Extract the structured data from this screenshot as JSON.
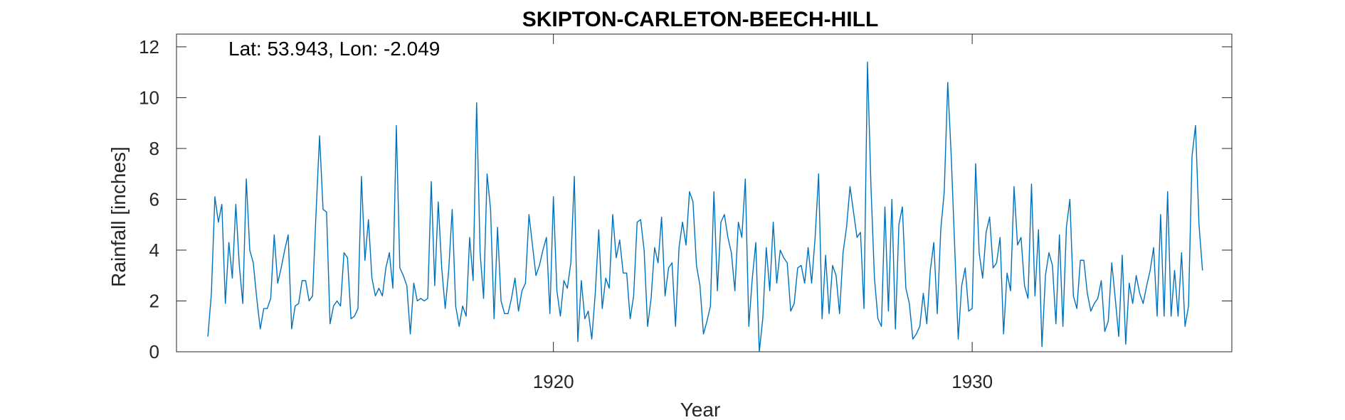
{
  "chart_data": {
    "type": "line",
    "title": "SKIPTON-CARLETON-BEECH-HILL",
    "xlabel": "Year",
    "ylabel": "Rainfall [inches]",
    "annotation": "Lat: 53.943, Lon: -2.049",
    "xlim": [
      1911,
      1936.2
    ],
    "ylim": [
      0,
      12.5
    ],
    "x_ticks": [
      1920,
      1930
    ],
    "x_tick_labels": [
      "1920",
      "1930"
    ],
    "y_ticks": [
      0,
      2,
      4,
      6,
      8,
      10,
      12
    ],
    "y_tick_labels": [
      "0",
      "2",
      "4",
      "6",
      "8",
      "10",
      "12"
    ],
    "grid": false,
    "line_color": "#0072BD",
    "x_start": 1911.75,
    "x_step": 0.08333,
    "series": [
      {
        "values": [
          0.6,
          2.3,
          6.1,
          5.1,
          5.8,
          1.9,
          4.3,
          2.9,
          5.8,
          3.4,
          1.9,
          6.8,
          4.0,
          3.5,
          2.1,
          0.9,
          1.7,
          1.7,
          2.1,
          4.6,
          2.7,
          3.3,
          4.0,
          4.6,
          0.9,
          1.8,
          1.9,
          2.8,
          2.8,
          2.0,
          2.2,
          5.5,
          8.5,
          5.6,
          5.5,
          1.1,
          1.8,
          2.0,
          1.8,
          3.9,
          3.7,
          1.3,
          1.4,
          1.7,
          6.9,
          3.6,
          5.2,
          2.9,
          2.2,
          2.5,
          2.2,
          3.3,
          3.9,
          2.5,
          8.9,
          3.3,
          3.0,
          2.6,
          0.7,
          2.7,
          2.0,
          2.1,
          2.0,
          2.1,
          6.7,
          2.6,
          5.9,
          3.3,
          1.7,
          3.2,
          5.6,
          1.8,
          1.0,
          1.8,
          1.4,
          4.5,
          2.8,
          9.8,
          3.9,
          2.1,
          7.0,
          5.6,
          1.3,
          4.9,
          2.0,
          1.5,
          1.5,
          2.1,
          2.9,
          1.6,
          2.4,
          2.7,
          5.4,
          4.2,
          3.0,
          3.4,
          4.0,
          4.5,
          1.5,
          6.1,
          2.4,
          1.4,
          2.8,
          2.5,
          3.5,
          6.9,
          0.4,
          2.8,
          1.3,
          1.6,
          0.5,
          2.3,
          4.8,
          1.7,
          2.9,
          2.5,
          5.4,
          3.7,
          4.4,
          3.1,
          3.1,
          1.3,
          2.2,
          5.1,
          5.2,
          4.0,
          1.0,
          2.1,
          4.1,
          3.5,
          5.3,
          2.2,
          3.3,
          3.5,
          1.0,
          4.1,
          5.1,
          4.2,
          6.3,
          5.9,
          3.4,
          2.6,
          0.7,
          1.2,
          1.8,
          6.3,
          2.4,
          5.1,
          5.4,
          4.5,
          3.9,
          2.4,
          5.1,
          4.5,
          6.8,
          1.0,
          2.9,
          4.3,
          0.0,
          1.3,
          4.1,
          2.4,
          5.1,
          2.7,
          4.0,
          3.7,
          3.5,
          1.6,
          1.9,
          3.3,
          3.4,
          2.7,
          4.1,
          2.7,
          4.5,
          7.0,
          1.3,
          3.8,
          1.5,
          3.4,
          3.0,
          1.5,
          3.9,
          4.9,
          6.5,
          5.5,
          4.5,
          4.7,
          1.7,
          11.4,
          6.5,
          2.9,
          1.3,
          1.0,
          5.7,
          1.6,
          6.0,
          0.9,
          5.0,
          5.7,
          2.5,
          1.9,
          0.5,
          0.7,
          1.0,
          2.3,
          1.1,
          3.2,
          4.3,
          1.5,
          4.8,
          6.3,
          10.6,
          7.7,
          4.1,
          0.5,
          2.6,
          3.3,
          1.6,
          1.7,
          7.4,
          3.9,
          2.9,
          4.7,
          5.3,
          3.3,
          3.5,
          4.5,
          0.7,
          3.1,
          2.4,
          6.5,
          4.2,
          4.5,
          2.6,
          2.1,
          6.6,
          2.2,
          4.8,
          0.2,
          3.0,
          3.9,
          3.4,
          1.1,
          4.6,
          1.0,
          4.9,
          6.0,
          2.2,
          1.7,
          3.6,
          3.6,
          2.3,
          1.6,
          1.9,
          2.1,
          2.8,
          0.8,
          1.2,
          3.5,
          2.1,
          0.6,
          3.8,
          0.3,
          2.7,
          1.9,
          3.0,
          2.3,
          1.9,
          2.6,
          3.2,
          4.1,
          1.4,
          5.4,
          1.4,
          6.3,
          1.4,
          3.2,
          1.4,
          3.9,
          1.0,
          1.8,
          7.7,
          8.9,
          5.0,
          3.2
        ]
      }
    ]
  }
}
